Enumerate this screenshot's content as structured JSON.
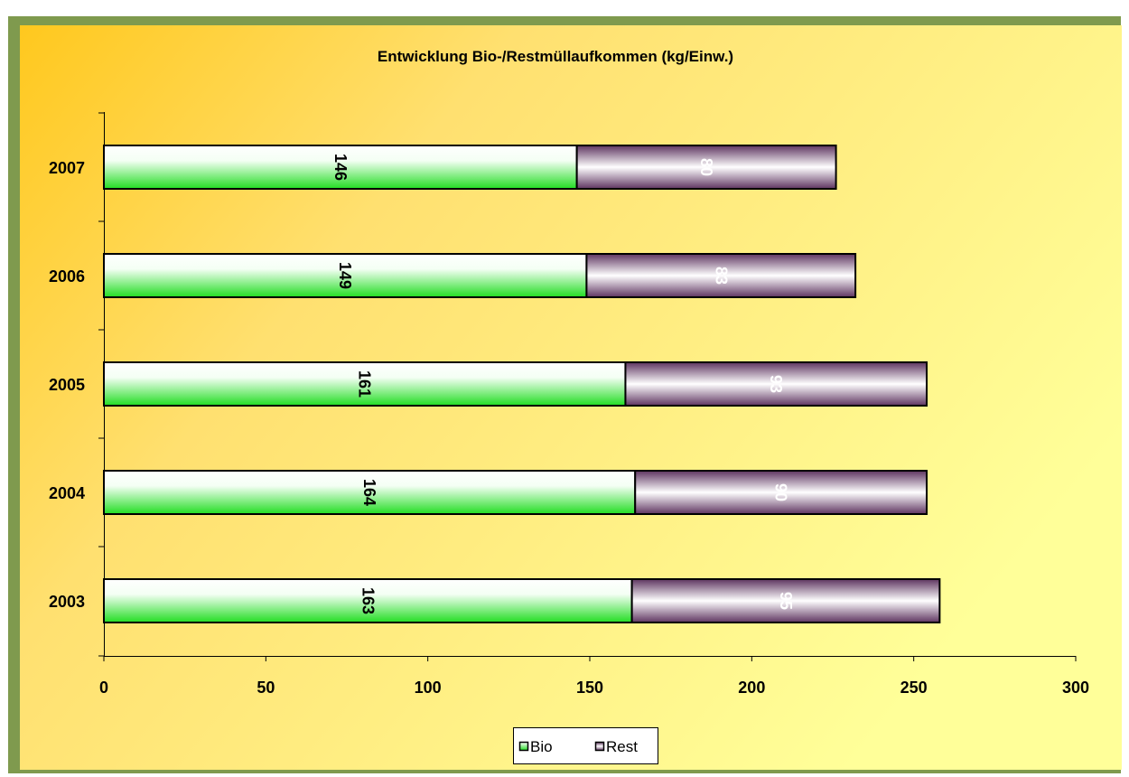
{
  "chart_data": {
    "type": "bar",
    "orientation": "horizontal",
    "stacked": true,
    "title": "Entwicklung Bio-/Restmüllaufkommen (kg/Einw.)",
    "categories": [
      "2003",
      "2004",
      "2005",
      "2006",
      "2007"
    ],
    "series": [
      {
        "name": "Bio",
        "values": [
          163,
          164,
          161,
          149,
          146
        ],
        "labels": [
          "163",
          "164",
          "161",
          "149",
          "146"
        ],
        "color": "#33dd33"
      },
      {
        "name": "Rest",
        "values": [
          95,
          90,
          93,
          83,
          80
        ],
        "labels": [
          "95",
          "90",
          "93",
          "83",
          "80"
        ],
        "color": "#6b3f6b"
      }
    ],
    "xlim": [
      0,
      300
    ],
    "xticks": [
      "0",
      "50",
      "100",
      "150",
      "200",
      "250",
      "300"
    ],
    "grid": false,
    "legend_position": "bottom",
    "colors": {
      "background_start": "#ffcc22",
      "background_end": "#ffff99",
      "border": "#7a9a4a"
    }
  }
}
